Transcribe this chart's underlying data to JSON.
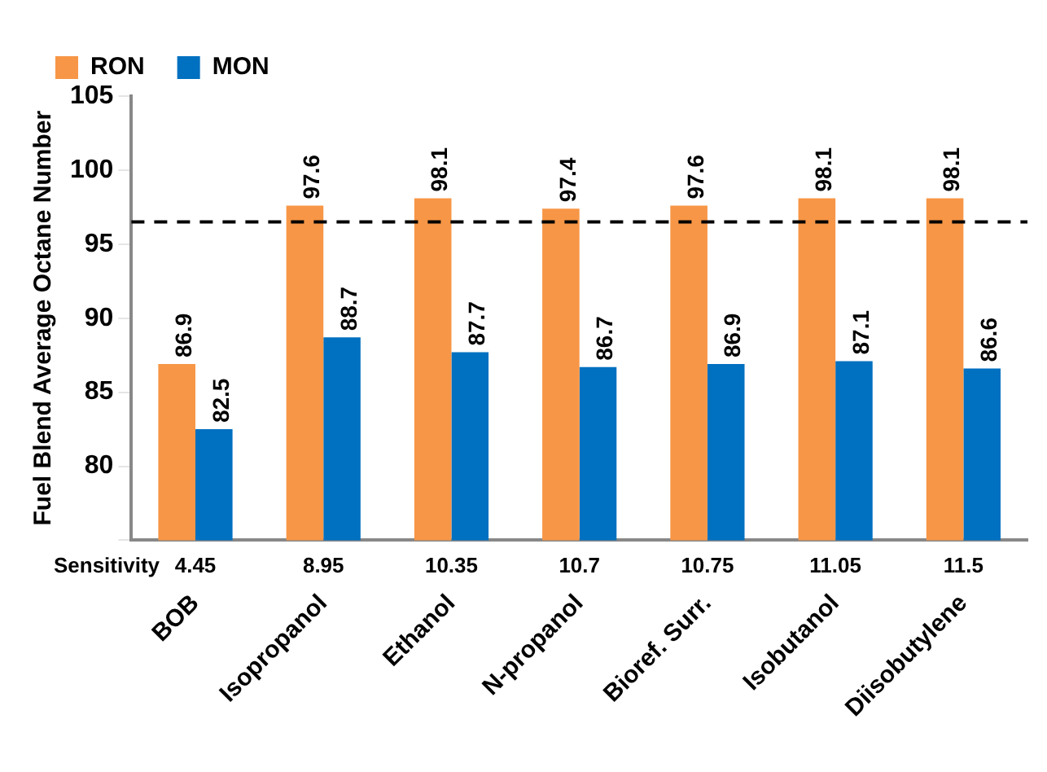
{
  "chart_data": {
    "type": "bar",
    "ylabel": "Fuel Blend Average Octane Number",
    "categories": [
      "BOB",
      "Isopropanol",
      "Ethanol",
      "N-propanol",
      "Bioref. Surr.",
      "Isobutanol",
      "Diisobutylene"
    ],
    "series": [
      {
        "name": "RON",
        "color": "#f79646",
        "values": [
          86.9,
          97.6,
          98.1,
          97.4,
          97.6,
          98.1,
          98.1
        ]
      },
      {
        "name": "MON",
        "color": "#0070c0",
        "values": [
          82.5,
          88.7,
          87.7,
          86.7,
          86.9,
          87.1,
          86.6
        ]
      }
    ],
    "ylim": [
      75,
      105
    ],
    "yticks": [
      {
        "value": 75,
        "label": null
      },
      80,
      85,
      90,
      95,
      100,
      105
    ],
    "ref_lines": [
      {
        "axis": "y",
        "value": 96.5,
        "color": "#000000",
        "line_style": "dashed"
      }
    ],
    "annotations": [
      "Sensitivity",
      {
        "text": "4.45",
        "x": "BOB"
      },
      {
        "text": "8.95",
        "x": "Isopropanol"
      },
      {
        "text": "10.35",
        "x": "Ethanol"
      },
      {
        "text": "10.7",
        "x": "N-propanol"
      },
      {
        "text": "10.75",
        "x": "Bioref. Surr."
      },
      {
        "text": "11.05",
        "x": "Isobutanol"
      },
      {
        "text": "11.5",
        "x": "Diisobutylene"
      }
    ],
    "data_labels": true,
    "grid": false,
    "legend": "top left"
  }
}
